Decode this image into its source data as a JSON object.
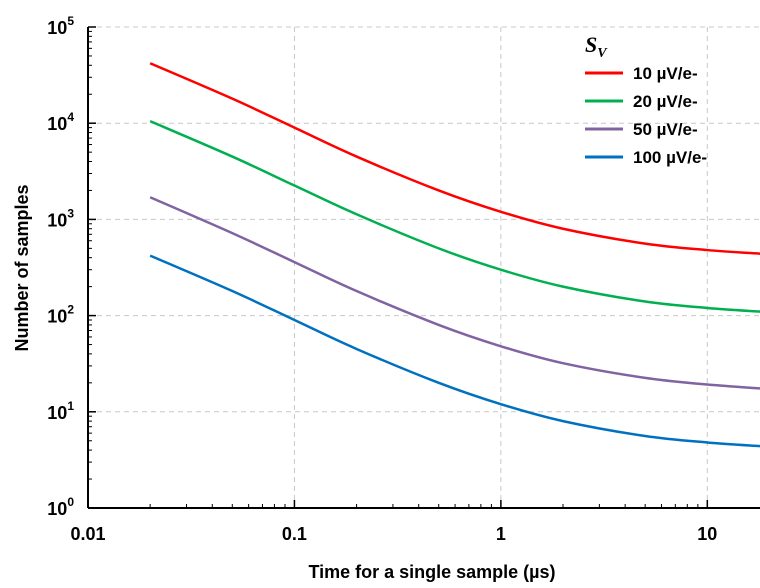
{
  "chart_data": {
    "type": "line",
    "xlabel": "Time for a single sample (µs)",
    "ylabel": "Number of samples",
    "xscale": "log",
    "yscale": "log",
    "xlim": [
      0.01,
      18
    ],
    "ylim": [
      1,
      100000
    ],
    "x_ticks": [
      {
        "value": 0.01,
        "label": "0.01"
      },
      {
        "value": 0.1,
        "label": "0.1"
      },
      {
        "value": 1,
        "label": "1"
      },
      {
        "value": 10,
        "label": "10"
      }
    ],
    "y_ticks": [
      {
        "value": 1,
        "base": "10",
        "exp": "0"
      },
      {
        "value": 10,
        "base": "10",
        "exp": "1"
      },
      {
        "value": 100,
        "base": "10",
        "exp": "2"
      },
      {
        "value": 1000,
        "base": "10",
        "exp": "3"
      },
      {
        "value": 10000,
        "base": "10",
        "exp": "4"
      },
      {
        "value": 100000,
        "base": "10",
        "exp": "5"
      }
    ],
    "grid": true,
    "legend": {
      "title_main": "S",
      "title_sub": "V",
      "position": "top-right"
    },
    "series": [
      {
        "name": "10 µV/e-",
        "color": "#ff0000",
        "x": [
          0.02,
          0.05,
          0.1,
          0.2,
          0.5,
          1,
          2,
          5,
          10,
          18
        ],
        "y": [
          42000,
          18000,
          9000,
          4500,
          2000,
          1200,
          800,
          560,
          480,
          440
        ]
      },
      {
        "name": "20 µV/e-",
        "color": "#00b050",
        "x": [
          0.02,
          0.05,
          0.1,
          0.2,
          0.5,
          1,
          2,
          5,
          10,
          18
        ],
        "y": [
          10500,
          4500,
          2250,
          1130,
          500,
          300,
          200,
          140,
          120,
          110
        ]
      },
      {
        "name": "50 µV/e-",
        "color": "#8064a2",
        "x": [
          0.02,
          0.05,
          0.1,
          0.2,
          0.5,
          1,
          2,
          5,
          10,
          18
        ],
        "y": [
          1700,
          720,
          360,
          180,
          80,
          48,
          32,
          22.5,
          19.2,
          17.5
        ]
      },
      {
        "name": "100 µV/e-",
        "color": "#0070c0",
        "x": [
          0.02,
          0.05,
          0.1,
          0.2,
          0.5,
          1,
          2,
          5,
          10,
          18
        ],
        "y": [
          420,
          180,
          90,
          45,
          20,
          12,
          8,
          5.6,
          4.8,
          4.4
        ]
      }
    ]
  }
}
